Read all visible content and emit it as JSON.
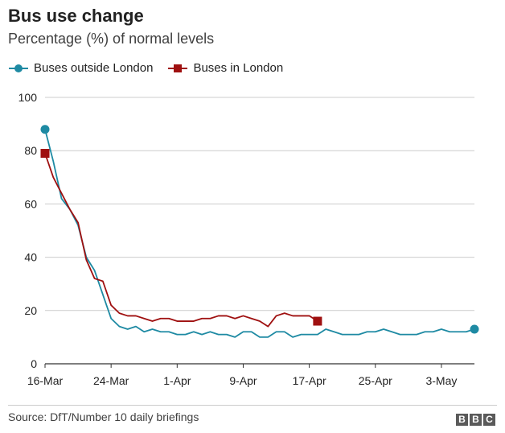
{
  "header": {
    "title": "Bus use change",
    "subtitle": "Percentage (%) of normal levels"
  },
  "footer": {
    "source": "Source: DfT/Number 10 daily briefings",
    "logo_letters": [
      "B",
      "B",
      "C"
    ]
  },
  "chart_data": {
    "type": "line",
    "title": "Bus use change",
    "subtitle": "Percentage (%) of normal levels",
    "xlabel": "",
    "ylabel": "",
    "ylim": [
      0,
      100
    ],
    "yticks": [
      0,
      20,
      40,
      60,
      80,
      100
    ],
    "xlim_days": [
      0,
      52
    ],
    "xticks": [
      {
        "label": "16-Mar",
        "day": 0
      },
      {
        "label": "24-Mar",
        "day": 8
      },
      {
        "label": "1-Apr",
        "day": 16
      },
      {
        "label": "9-Apr",
        "day": 24
      },
      {
        "label": "17-Apr",
        "day": 32
      },
      {
        "label": "25-Apr",
        "day": 40
      },
      {
        "label": "3-May",
        "day": 48
      }
    ],
    "grid": "horizontal",
    "legend_position": "top-left",
    "series": [
      {
        "name": "Buses outside London",
        "color": "#1e8aa3",
        "marker": "circle",
        "values": [
          88,
          76,
          62,
          58,
          52,
          40,
          35,
          26,
          17,
          14,
          13,
          14,
          12,
          13,
          12,
          12,
          11,
          11,
          12,
          11,
          12,
          11,
          11,
          10,
          12,
          12,
          10,
          10,
          12,
          12,
          10,
          11,
          11,
          11,
          13,
          12,
          11,
          11,
          11,
          12,
          12,
          13,
          12,
          11,
          11,
          11,
          12,
          12,
          13,
          12,
          12,
          12,
          13
        ]
      },
      {
        "name": "Buses in London",
        "color": "#9f1010",
        "marker": "square",
        "values": [
          79,
          70,
          64,
          58,
          53,
          39,
          32,
          31,
          22,
          19,
          18,
          18,
          17,
          16,
          17,
          17,
          16,
          16,
          16,
          17,
          17,
          18,
          18,
          17,
          18,
          17,
          16,
          14,
          18,
          19,
          18,
          18,
          18,
          16
        ]
      }
    ]
  }
}
